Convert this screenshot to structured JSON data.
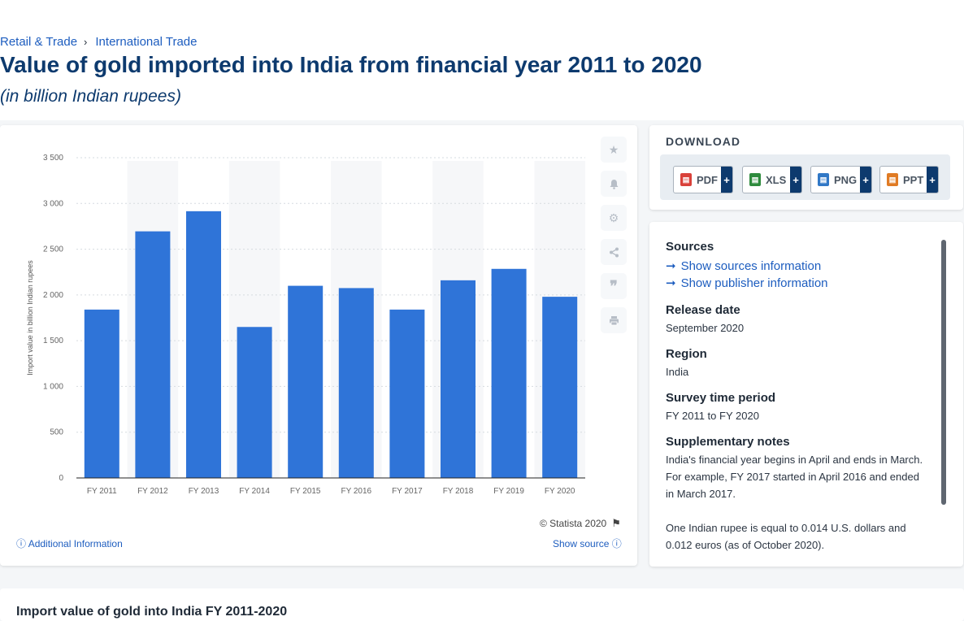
{
  "breadcrumb": [
    "Retail & Trade",
    "International Trade"
  ],
  "title": "Value of gold imported into India from financial year 2011 to 2020",
  "subtitle": "(in billion Indian rupees)",
  "side_actions": [
    "star-icon",
    "bell-icon",
    "gear-icon",
    "share-icon",
    "quote-icon",
    "print-icon"
  ],
  "footer": {
    "copyright": "© Statista 2020",
    "additional_info": "Additional Information",
    "show_source": "Show source"
  },
  "download": {
    "title": "DOWNLOAD",
    "buttons": [
      {
        "label": "PDF",
        "color": "#d9413a",
        "plus": "+"
      },
      {
        "label": "XLS",
        "color": "#2e8b3d",
        "plus": "+"
      },
      {
        "label": "PNG",
        "color": "#3178c6",
        "plus": "+"
      },
      {
        "label": "PPT",
        "color": "#e07b24",
        "plus": "+"
      }
    ]
  },
  "info": {
    "sources_heading": "Sources",
    "show_sources": "Show sources information",
    "show_publisher": "Show publisher information",
    "release_heading": "Release date",
    "release_value": "September 2020",
    "region_heading": "Region",
    "region_value": "India",
    "survey_heading": "Survey time period",
    "survey_value": "FY 2011 to FY 2020",
    "notes_heading": "Supplementary notes",
    "notes_1": "India's financial year begins in April and ends in March. For example, FY 2017 started in April 2016 and ended in March 2017.",
    "notes_2": "One Indian rupee is equal to 0.014 U.S. dollars and 0.012 euros (as of October 2020)."
  },
  "bottom_title": "Import value of gold into India FY 2011-2020",
  "colors": {
    "bar": "#2f74d8",
    "title": "#0d3a6e",
    "link": "#1d5dbf"
  },
  "chart_data": {
    "type": "bar",
    "categories": [
      "FY 2011",
      "FY 2012",
      "FY 2013",
      "FY 2014",
      "FY 2015",
      "FY 2016",
      "FY 2017",
      "FY 2018",
      "FY 2019",
      "FY 2020"
    ],
    "values": [
      1840,
      2695,
      2915,
      1650,
      2100,
      2075,
      1840,
      2160,
      2285,
      1980
    ],
    "ylabel": "Import value in billion Indian rupees",
    "ylim": [
      0,
      3500
    ],
    "yticks": [
      0,
      500,
      1000,
      1500,
      2000,
      2500,
      3000,
      3500
    ],
    "ytick_labels": [
      "0",
      "500",
      "1 000",
      "1 500",
      "2 000",
      "2 500",
      "3 000",
      "3 500"
    ],
    "grid": true
  }
}
